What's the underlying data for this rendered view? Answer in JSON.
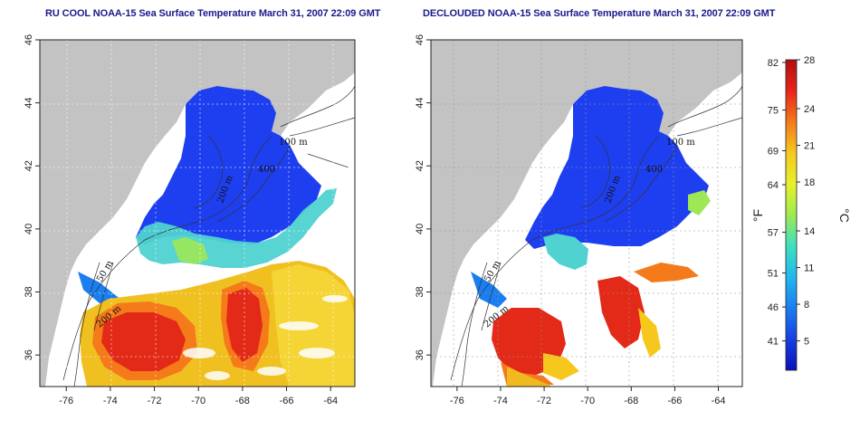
{
  "titles": {
    "left": "RU COOL NOAA-15 Sea Surface Temperature March 31, 2007 22:09 GMT",
    "right": "DECLOUDED NOAA-15 Sea Surface Temperature March 31, 2007 22:09 GMT"
  },
  "map_axes": {
    "lon_ticks": [
      "-76",
      "-74",
      "-72",
      "-70",
      "-68",
      "-66",
      "-64"
    ],
    "lat_ticks": [
      "46",
      "44",
      "42",
      "40",
      "38",
      "36"
    ],
    "lon_range": [
      -77.2,
      -62.9
    ],
    "lat_range": [
      35,
      46
    ]
  },
  "contour_labels": {
    "left": [
      "100 m",
      "200 m",
      "400",
      "50 m",
      "200 m"
    ],
    "right": [
      "100 m",
      "200 m",
      "400",
      "50 m",
      "200 m"
    ]
  },
  "colorbar": {
    "fahrenheit_ticks": [
      "82",
      "75",
      "69",
      "64",
      "57",
      "51",
      "46",
      "41"
    ],
    "celsius_ticks": [
      "28",
      "24",
      "21",
      "18",
      "14",
      "11",
      "8",
      "5"
    ],
    "fahrenheit_unit": "°F",
    "celsius_unit": "°C",
    "colors": [
      "#b01010",
      "#e8241a",
      "#f47a1a",
      "#f6c81e",
      "#e8f02a",
      "#9eea52",
      "#3ee0c0",
      "#22b8ee",
      "#1a7ef0",
      "#1640e0",
      "#0a10b8"
    ]
  },
  "colors": {
    "land": "#c3c3c3",
    "cold_water": "#1e3ff0",
    "no_data": "#ffffff"
  }
}
